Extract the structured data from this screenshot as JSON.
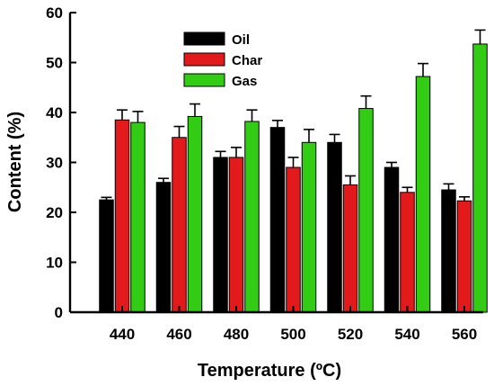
{
  "chart_data": {
    "type": "bar",
    "xlabel": "Temperature (ºC)",
    "ylabel": "Content (%)",
    "ylim": [
      0,
      60
    ],
    "yticks": [
      0,
      10,
      20,
      30,
      40,
      50,
      60
    ],
    "categories": [
      "440",
      "460",
      "480",
      "500",
      "520",
      "540",
      "560"
    ],
    "series": [
      {
        "name": "Oil",
        "color": "#000000",
        "values": [
          22.5,
          26,
          31,
          37,
          34,
          29,
          24.5
        ],
        "errors": [
          0.5,
          0.8,
          1.2,
          1.4,
          1.6,
          1.0,
          1.2
        ]
      },
      {
        "name": "Char",
        "color": "#e31a1c",
        "values": [
          38.5,
          35,
          31,
          29,
          25.5,
          24,
          22.3
        ],
        "errors": [
          2.0,
          2.2,
          2.0,
          2.0,
          1.8,
          1.0,
          0.8
        ]
      },
      {
        "name": "Gas",
        "color": "#33cc14",
        "values": [
          38,
          39.2,
          38.2,
          34,
          40.8,
          47.2,
          53.7
        ],
        "errors": [
          2.2,
          2.5,
          2.3,
          2.6,
          2.5,
          2.6,
          2.8
        ]
      }
    ],
    "legend": "top-center",
    "grid": false
  }
}
